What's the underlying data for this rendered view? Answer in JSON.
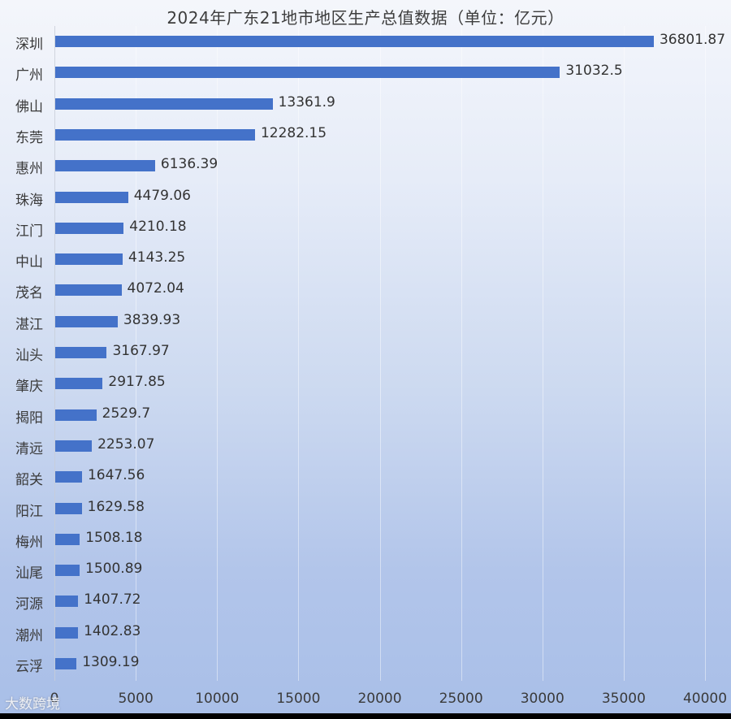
{
  "chart_data": {
    "type": "bar",
    "orientation": "horizontal",
    "title": "2024年广东21地市地区生产总值数据（单位：亿元）",
    "xlabel": "",
    "ylabel": "",
    "xlim": [
      0,
      40000
    ],
    "xticks": [
      "0",
      "5000",
      "10000",
      "15000",
      "20000",
      "25000",
      "30000",
      "35000",
      "40000"
    ],
    "grid": true,
    "legend": null,
    "bar_color": "#4472c9",
    "categories": [
      "深圳",
      "广州",
      "佛山",
      "东莞",
      "惠州",
      "珠海",
      "江门",
      "中山",
      "茂名",
      "湛江",
      "汕头",
      "肇庆",
      "揭阳",
      "清远",
      "韶关",
      "阳江",
      "梅州",
      "汕尾",
      "河源",
      "潮州",
      "云浮"
    ],
    "values": [
      36801.87,
      31032.5,
      13361.9,
      12282.15,
      6136.39,
      4479.06,
      4210.18,
      4143.25,
      4072.04,
      3839.93,
      3167.97,
      2917.85,
      2529.7,
      2253.07,
      1647.56,
      1629.58,
      1508.18,
      1500.89,
      1407.72,
      1402.83,
      1309.19
    ],
    "value_labels": [
      "36801.87",
      "31032.5",
      "13361.9",
      "12282.15",
      "6136.39",
      "4479.06",
      "4210.18",
      "4143.25",
      "4072.04",
      "3839.93",
      "3167.97",
      "2917.85",
      "2529.7",
      "2253.07",
      "1647.56",
      "1629.58",
      "1508.18",
      "1500.89",
      "1407.72",
      "1402.83",
      "1309.19"
    ]
  },
  "watermark": "大数跨境"
}
